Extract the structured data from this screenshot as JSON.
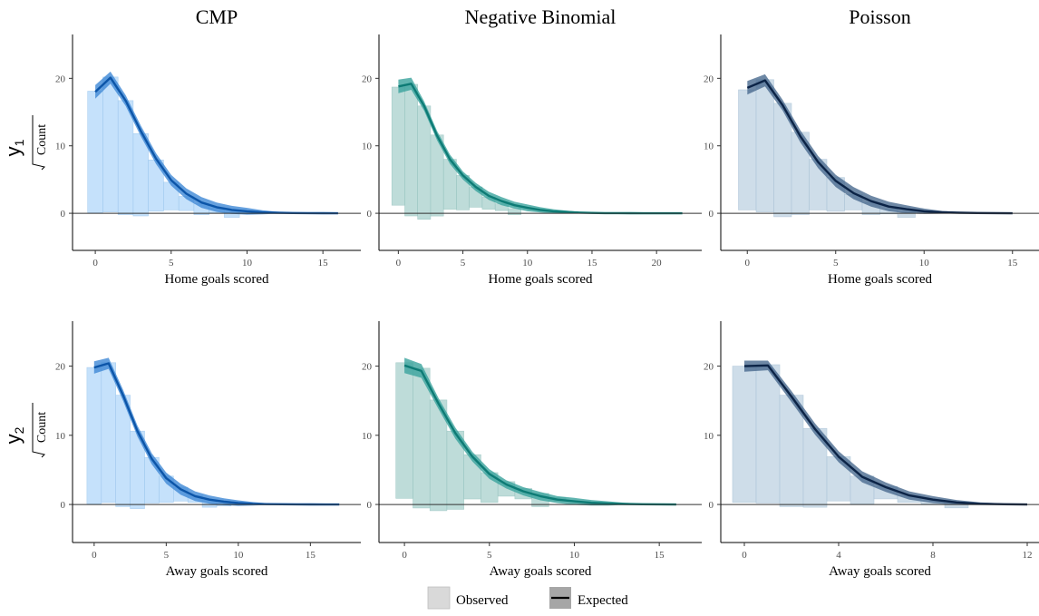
{
  "colors": {
    "CMP": {
      "bar": "#bcdcfb",
      "barStroke": "#9cc7ee",
      "band": "#3f88d6",
      "line": "#0c55a8"
    },
    "NB": {
      "bar": "#b3d6d3",
      "barStroke": "#95c3bf",
      "band": "#3aa39c",
      "line": "#0d7b75"
    },
    "Poisson": {
      "bar": "#c6d8e6",
      "barStroke": "#a9c2d5",
      "band": "#4a6a8f",
      "line": "#0b2346"
    }
  },
  "legend": {
    "observed": "Observed",
    "expected": "Expected"
  },
  "row_labels": [
    "y",
    "y"
  ],
  "row_label_subscripts": [
    "1",
    "2"
  ],
  "y_axis_label": "Count",
  "chart_data": [
    {
      "type": "area",
      "panel": "CMP-home",
      "title": "CMP",
      "xlabel": "Home goals scored",
      "xlim": [
        -1.5,
        17.5
      ],
      "xticks": [
        0,
        5,
        10,
        15
      ],
      "ylim": [
        -5.5,
        26.5
      ],
      "yticks": [
        0,
        10,
        20
      ],
      "x": [
        0,
        1,
        2,
        3,
        4,
        5,
        6,
        7,
        8,
        9,
        10,
        11,
        12,
        13,
        14,
        15,
        16
      ],
      "expected": [
        18.0,
        20.1,
        16.7,
        12.2,
        8.1,
        4.9,
        2.9,
        1.6,
        0.9,
        0.5,
        0.3,
        0.15,
        0.08,
        0.04,
        0.02,
        0.01,
        0.0
      ],
      "band": [
        1.0,
        0.9,
        0.8,
        0.8,
        0.8,
        0.8,
        0.8,
        0.8,
        0.7,
        0.6,
        0.5,
        0.3,
        0.15,
        0.08,
        0.04,
        0.02,
        0.01
      ],
      "observed_top": [
        18.1,
        20.2,
        16.7,
        11.8,
        7.9,
        4.6,
        2.5,
        1.4,
        0.8,
        0.2,
        0.0,
        0.0,
        0.0,
        0.0,
        0.0,
        0.0,
        0.0
      ],
      "observed_bottom": [
        0.1,
        0.2,
        -0.2,
        -0.4,
        0.3,
        0.5,
        0.4,
        -0.2,
        0.1,
        -0.6,
        0.0,
        0.0,
        0.0,
        0.0,
        0.0,
        0.0,
        0.0
      ]
    },
    {
      "type": "area",
      "panel": "NB-home",
      "title": "Negative Binomial",
      "xlabel": "Home goals scored",
      "xlim": [
        -1.5,
        23.5
      ],
      "xticks": [
        0,
        5,
        10,
        15,
        20
      ],
      "ylim": [
        -5.5,
        26.5
      ],
      "yticks": [
        0,
        10,
        20
      ],
      "x": [
        0,
        1,
        2,
        3,
        4,
        5,
        6,
        7,
        8,
        9,
        10,
        11,
        12,
        13,
        14,
        15,
        16,
        17,
        18,
        19,
        20,
        21,
        22
      ],
      "expected": [
        18.8,
        19.2,
        15.9,
        11.5,
        8.0,
        5.6,
        3.9,
        2.6,
        1.8,
        1.2,
        0.8,
        0.5,
        0.3,
        0.2,
        0.1,
        0.05,
        0.03,
        0.02,
        0.01,
        0.0,
        0.0,
        0.0,
        0.0
      ],
      "band": [
        1.0,
        0.9,
        0.7,
        0.7,
        0.7,
        0.6,
        0.6,
        0.6,
        0.6,
        0.5,
        0.5,
        0.4,
        0.3,
        0.2,
        0.12,
        0.06,
        0.04,
        0.02,
        0.01,
        0.0,
        0.0,
        0.0,
        0.0
      ],
      "observed_top": [
        18.7,
        19.1,
        15.9,
        11.6,
        8.0,
        5.6,
        3.9,
        2.4,
        1.4,
        0.7,
        0.0,
        0.0,
        0.0,
        0.0,
        0.0,
        0.0,
        0.0,
        0.0,
        0.0,
        0.0,
        0.0,
        0.0,
        0.0
      ],
      "observed_bottom": [
        1.2,
        -0.4,
        -0.9,
        -0.4,
        0.6,
        0.5,
        0.9,
        0.6,
        0.4,
        -0.2,
        0.0,
        0.0,
        0.0,
        0.0,
        0.0,
        0.0,
        0.0,
        0.0,
        0.0,
        0.0,
        0.0,
        0.0,
        0.0
      ]
    },
    {
      "type": "area",
      "panel": "Poisson-home",
      "title": "Poisson",
      "xlabel": "Home goals scored",
      "xlim": [
        -1.5,
        16.5
      ],
      "xticks": [
        0,
        5,
        10,
        15
      ],
      "ylim": [
        -5.5,
        26.5
      ],
      "yticks": [
        0,
        10,
        20
      ],
      "x": [
        0,
        1,
        2,
        3,
        4,
        5,
        6,
        7,
        8,
        9,
        10,
        11,
        12,
        13,
        14,
        15
      ],
      "expected": [
        18.6,
        19.7,
        16.0,
        11.4,
        7.6,
        4.8,
        3.0,
        1.8,
        1.0,
        0.6,
        0.3,
        0.15,
        0.08,
        0.04,
        0.02,
        0.0
      ],
      "band": [
        1.0,
        0.9,
        0.8,
        0.9,
        0.9,
        0.9,
        0.9,
        0.8,
        0.7,
        0.6,
        0.4,
        0.2,
        0.1,
        0.05,
        0.02,
        0.01
      ],
      "observed_top": [
        18.3,
        19.8,
        16.3,
        12.0,
        8.0,
        5.3,
        2.8,
        1.6,
        0.6,
        0.3,
        0.0,
        0.0,
        0.0,
        0.0,
        0.0,
        0.0
      ],
      "observed_bottom": [
        0.5,
        0.2,
        -0.5,
        -0.2,
        0.5,
        0.3,
        0.5,
        -0.2,
        -0.1,
        -0.6,
        0.0,
        0.0,
        0.0,
        0.0,
        0.0,
        0.0
      ]
    },
    {
      "type": "area",
      "panel": "CMP-away",
      "title": "",
      "xlabel": "Away goals scored",
      "xlim": [
        -1.5,
        18.5
      ],
      "xticks": [
        0,
        5,
        10,
        15
      ],
      "ylim": [
        -5.5,
        26.5
      ],
      "yticks": [
        0,
        10,
        20
      ],
      "x": [
        0,
        1,
        2,
        3,
        4,
        5,
        6,
        7,
        8,
        9,
        10,
        11,
        12,
        13,
        14,
        15,
        16,
        17
      ],
      "expected": [
        19.8,
        20.4,
        15.8,
        10.6,
        6.6,
        3.8,
        2.2,
        1.2,
        0.7,
        0.4,
        0.2,
        0.1,
        0.05,
        0.03,
        0.02,
        0.01,
        0.0,
        0.0
      ],
      "band": [
        0.9,
        0.8,
        0.8,
        0.8,
        0.8,
        0.8,
        0.8,
        0.7,
        0.6,
        0.5,
        0.4,
        0.25,
        0.12,
        0.06,
        0.03,
        0.02,
        0.01,
        0.0
      ],
      "observed_top": [
        19.8,
        20.5,
        15.8,
        10.6,
        6.8,
        4.1,
        2.5,
        1.3,
        0.6,
        0.1,
        0.0,
        0.0,
        0.0,
        0.0,
        0.0,
        0.0,
        0.0,
        0.0
      ],
      "observed_bottom": [
        0.1,
        0.3,
        -0.3,
        -0.6,
        0.2,
        0.3,
        0.5,
        0.3,
        -0.4,
        -0.2,
        0.0,
        0.0,
        0.0,
        0.0,
        0.0,
        0.0,
        0.0,
        0.0
      ]
    },
    {
      "type": "area",
      "panel": "NB-away",
      "title": "",
      "xlabel": "Away goals scored",
      "xlim": [
        -1.5,
        17.5
      ],
      "xticks": [
        0,
        5,
        10,
        15
      ],
      "ylim": [
        -5.5,
        26.5
      ],
      "yticks": [
        0,
        10,
        20
      ],
      "x": [
        0,
        1,
        2,
        3,
        4,
        5,
        6,
        7,
        8,
        9,
        10,
        11,
        12,
        13,
        14,
        15,
        16
      ],
      "expected": [
        20.1,
        19.3,
        14.6,
        10.3,
        6.9,
        4.4,
        2.9,
        1.9,
        1.2,
        0.7,
        0.45,
        0.25,
        0.15,
        0.08,
        0.04,
        0.02,
        0.0
      ],
      "band": [
        1.1,
        1.0,
        0.8,
        0.8,
        0.7,
        0.7,
        0.6,
        0.6,
        0.6,
        0.5,
        0.5,
        0.4,
        0.3,
        0.15,
        0.08,
        0.04,
        0.02
      ],
      "observed_top": [
        20.5,
        19.7,
        15.1,
        10.6,
        7.2,
        4.6,
        3.3,
        2.3,
        1.6,
        1.0,
        0.0,
        0.0,
        0.0,
        0.0,
        0.0,
        0.0,
        0.0
      ],
      "observed_bottom": [
        0.9,
        -0.5,
        -0.9,
        -0.7,
        0.8,
        0.3,
        1.2,
        0.8,
        -0.3,
        0.5,
        0.0,
        0.0,
        0.0,
        0.0,
        0.0,
        0.0,
        0.0
      ]
    },
    {
      "type": "area",
      "panel": "Poisson-away",
      "title": "",
      "xlabel": "Away goals scored",
      "xlim": [
        -1,
        12.5
      ],
      "xticks": [
        0,
        4,
        8,
        12
      ],
      "ylim": [
        -5.5,
        26.5
      ],
      "yticks": [
        0,
        10,
        20
      ],
      "x": [
        0,
        1,
        2,
        3,
        4,
        5,
        6,
        7,
        8,
        9,
        10,
        11,
        12
      ],
      "expected": [
        20.0,
        20.1,
        15.6,
        10.9,
        6.9,
        4.0,
        2.5,
        1.3,
        0.7,
        0.3,
        0.1,
        0.04,
        0.0
      ],
      "band": [
        0.8,
        0.7,
        0.8,
        0.8,
        0.8,
        0.8,
        0.7,
        0.6,
        0.5,
        0.35,
        0.2,
        0.1,
        0.05
      ],
      "observed_top": [
        20.0,
        20.2,
        15.8,
        11.0,
        6.9,
        4.1,
        2.6,
        1.3,
        0.6,
        0.2,
        0.0,
        0.0,
        0.0
      ],
      "observed_bottom": [
        0.3,
        0.2,
        -0.3,
        -0.4,
        0.5,
        0.1,
        0.8,
        0.3,
        0.1,
        -0.5,
        0.0,
        0.0,
        0.0
      ]
    }
  ]
}
